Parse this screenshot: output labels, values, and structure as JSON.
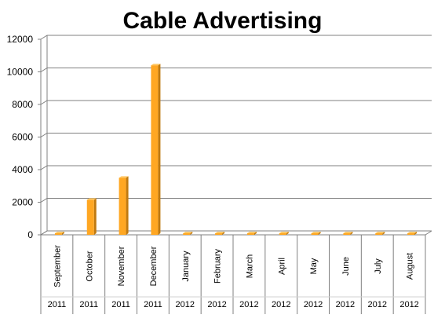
{
  "chart_data": {
    "type": "bar",
    "title": "Cable Advertising",
    "categories": [
      "September",
      "October",
      "November",
      "December",
      "January",
      "February",
      "March",
      "April",
      "May",
      "June",
      "July",
      "August"
    ],
    "years": [
      "2011",
      "2011",
      "2011",
      "2011",
      "2012",
      "2012",
      "2012",
      "2012",
      "2012",
      "2012",
      "2012",
      "2012"
    ],
    "values": [
      0,
      2150,
      3500,
      10400,
      0,
      0,
      0,
      0,
      0,
      0,
      0,
      0
    ],
    "ylim": [
      0,
      12000
    ],
    "yticks": [
      "0",
      "2000",
      "4000",
      "6000",
      "8000",
      "10000",
      "12000"
    ],
    "grid": true,
    "colors": {
      "bar_front": "#FFA722",
      "bar_side": "#C07A10",
      "bar_top": "#FFC866",
      "grid": "#808080",
      "wall": "#ffffff"
    }
  }
}
